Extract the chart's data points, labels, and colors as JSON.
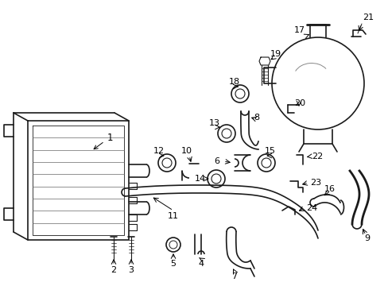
{
  "background_color": "#ffffff",
  "line_color": "#1a1a1a",
  "text_color": "#000000",
  "figsize": [
    4.89,
    3.6
  ],
  "dpi": 100
}
